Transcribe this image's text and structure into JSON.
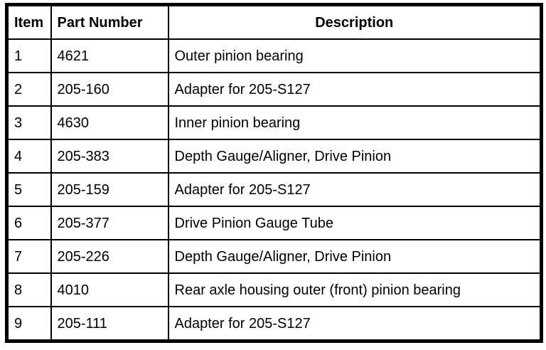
{
  "page": {
    "background": "#ffffff"
  },
  "table": {
    "border_color": "#000000",
    "text_color": "#000000",
    "headers": {
      "item": "Item",
      "part_number": "Part Number",
      "description": "Description"
    },
    "rows": [
      {
        "item": "1",
        "part_number": "4621",
        "description": "Outer pinion bearing"
      },
      {
        "item": "2",
        "part_number": "205-160",
        "description": "Adapter for 205-S127"
      },
      {
        "item": "3",
        "part_number": "4630",
        "description": "Inner pinion bearing"
      },
      {
        "item": "4",
        "part_number": "205-383",
        "description": "Depth Gauge/Aligner, Drive Pinion"
      },
      {
        "item": "5",
        "part_number": "205-159",
        "description": "Adapter for 205-S127"
      },
      {
        "item": "6",
        "part_number": "205-377",
        "description": "Drive Pinion Gauge Tube"
      },
      {
        "item": "7",
        "part_number": "205-226",
        "description": "Depth Gauge/Aligner, Drive Pinion"
      },
      {
        "item": "8",
        "part_number": "4010",
        "description": "Rear axle housing outer (front) pinion bearing"
      },
      {
        "item": "9",
        "part_number": "205-111",
        "description": "Adapter for 205-S127"
      }
    ]
  }
}
